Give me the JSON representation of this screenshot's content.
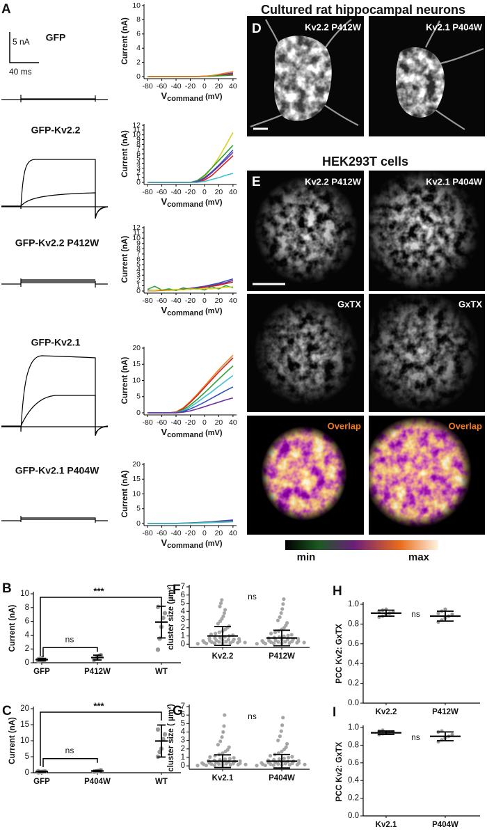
{
  "panel_labels": [
    "A",
    "B",
    "C",
    "D",
    "E",
    "F",
    "G",
    "H",
    "I"
  ],
  "traces": {
    "scale_current": "5 nA",
    "scale_time": "40 ms",
    "labels": [
      "GFP",
      "GFP-Kv2.2",
      "GFP-Kv2.2 P412W",
      "GFP-Kv2.1",
      "GFP-Kv2.1 P404W"
    ]
  },
  "imaging": {
    "neurons_title": "Cultured rat hippocampal neurons",
    "hek_title": "HEK293T cells",
    "columns": [
      "Kv2.2 P412W",
      "Kv2.1 P404W"
    ],
    "gxtx": "GxTX",
    "overlap": "Overlap",
    "colorbar": [
      "min",
      "max"
    ]
  },
  "chart_data": [
    {
      "type": "line",
      "y_label": "Current (nA)",
      "x_label": [
        "V",
        "command",
        "(mV)"
      ],
      "x": [
        -80,
        -70,
        -60,
        -50,
        -40,
        -30,
        -20,
        -10,
        0,
        10,
        20,
        30,
        40
      ],
      "xlim": [
        -85,
        45
      ],
      "xticks": [
        -80,
        -60,
        -40,
        -20,
        0,
        20,
        40
      ],
      "ylim": [
        0,
        10
      ],
      "yticks": [
        0,
        2,
        4,
        6,
        8,
        10
      ],
      "series": [
        {
          "color": "#7030a0",
          "values": [
            0,
            0,
            0,
            0,
            0,
            0,
            0,
            0,
            0.05,
            0.1,
            0.2,
            0.35,
            0.5
          ]
        },
        {
          "color": "#3050c0",
          "values": [
            0,
            0,
            0,
            0,
            0,
            0,
            0,
            0.02,
            0.05,
            0.1,
            0.2,
            0.3,
            0.4
          ]
        },
        {
          "color": "#d02020",
          "values": [
            0,
            0,
            0,
            0,
            0,
            0,
            0,
            0,
            0.03,
            0.08,
            0.15,
            0.25,
            0.35
          ]
        },
        {
          "color": "#30a030",
          "values": [
            0,
            0,
            0,
            0,
            0,
            0,
            0,
            0,
            0.02,
            0.05,
            0.1,
            0.15,
            0.2
          ]
        },
        {
          "color": "#e08020",
          "values": [
            0,
            0,
            0,
            0,
            0,
            0,
            0,
            0,
            0.05,
            0.15,
            0.3,
            0.5,
            0.7
          ]
        }
      ]
    },
    {
      "type": "line",
      "y_label": "Current (nA)",
      "x_label": [
        "V",
        "command",
        "(mV)"
      ],
      "x": [
        -80,
        -70,
        -60,
        -50,
        -40,
        -30,
        -20,
        -10,
        0,
        10,
        20,
        30,
        40
      ],
      "xlim": [
        -85,
        45
      ],
      "xticks": [
        -80,
        -60,
        -40,
        -20,
        0,
        20,
        40
      ],
      "ylim": [
        0,
        12
      ],
      "yticks": [
        0,
        1,
        2,
        3,
        4,
        5,
        6,
        7,
        8,
        9,
        10,
        11,
        12
      ],
      "series": [
        {
          "color": "#e0d020",
          "values": [
            0,
            0,
            0,
            0,
            0,
            0,
            0,
            0.3,
            1.2,
            3,
            5.2,
            7.8,
            10.5
          ]
        },
        {
          "color": "#30a030",
          "values": [
            0,
            0,
            0,
            0,
            0,
            0,
            0,
            0.4,
            1.5,
            3,
            4.6,
            6.2,
            7.8
          ]
        },
        {
          "color": "#3050c0",
          "values": [
            0,
            0,
            0,
            0,
            0,
            0,
            0,
            0.2,
            1,
            2.2,
            3.6,
            5.2,
            6.8
          ]
        },
        {
          "color": "#7030a0",
          "values": [
            0,
            0,
            0,
            0,
            0,
            0,
            0,
            0.1,
            0.8,
            2,
            3.4,
            4.8,
            6.3
          ]
        },
        {
          "color": "#d02020",
          "values": [
            0,
            0,
            0,
            0,
            0,
            0,
            0,
            0,
            0.5,
            1.4,
            2.8,
            4.2,
            5.6
          ]
        },
        {
          "color": "#40c0d0",
          "values": [
            0,
            0,
            0,
            0,
            0,
            0,
            0,
            0,
            0.2,
            0.6,
            1,
            1.5,
            1.9
          ]
        }
      ]
    },
    {
      "type": "line",
      "y_label": "Current (nA)",
      "x_label": [
        "V",
        "command",
        "(mV)"
      ],
      "x": [
        -80,
        -70,
        -60,
        -50,
        -40,
        -30,
        -20,
        -10,
        0,
        10,
        20,
        30,
        40
      ],
      "xlim": [
        -85,
        45
      ],
      "xticks": [
        -80,
        -60,
        -40,
        -20,
        0,
        20,
        40
      ],
      "ylim": [
        0,
        12
      ],
      "yticks": [
        0,
        1,
        2,
        3,
        4,
        5,
        6,
        7,
        8,
        9,
        10,
        11,
        12
      ],
      "series": [
        {
          "color": "#3050c0",
          "values": [
            0.1,
            0.1,
            0.15,
            0.2,
            0.25,
            0.35,
            0.5,
            0.7,
            0.9,
            1.2,
            1.5,
            1.9,
            2.3
          ]
        },
        {
          "color": "#7030a0",
          "values": [
            0.05,
            0.1,
            0.15,
            0.2,
            0.25,
            0.3,
            0.45,
            0.6,
            0.8,
            1.0,
            1.3,
            1.6,
            2.0
          ]
        },
        {
          "color": "#d02020",
          "values": [
            0,
            0.05,
            0.1,
            0.15,
            0.2,
            0.25,
            0.35,
            0.5,
            0.7,
            0.9,
            1.1,
            1.4,
            1.7
          ]
        },
        {
          "color": "#30a030",
          "values": [
            0.3,
            0.9,
            0.2,
            0.4,
            0.1,
            0.6,
            0.3,
            0.5,
            0.2,
            0.8,
            0.4,
            1.0,
            0.6
          ]
        },
        {
          "color": "#e0d020",
          "values": [
            0,
            0.1,
            0.2,
            0.1,
            0.3,
            0.2,
            0.4,
            0.3,
            0.5,
            0.4,
            0.6,
            0.7,
            0.8
          ]
        }
      ]
    },
    {
      "type": "line",
      "y_label": "Current (nA)",
      "x_label": [
        "V",
        "command",
        "(mV)"
      ],
      "x": [
        -80,
        -70,
        -60,
        -50,
        -40,
        -30,
        -20,
        -10,
        0,
        10,
        20,
        30,
        40
      ],
      "xlim": [
        -85,
        45
      ],
      "xticks": [
        -80,
        -60,
        -40,
        -20,
        0,
        20,
        40
      ],
      "ylim": [
        0,
        20
      ],
      "yticks": [
        0,
        5,
        10,
        15,
        20
      ],
      "series": [
        {
          "color": "#f08020",
          "values": [
            0,
            0,
            0,
            0,
            0.3,
            1.5,
            3.5,
            5.8,
            8.3,
            10.8,
            13.3,
            15.6,
            17.8
          ]
        },
        {
          "color": "#d02020",
          "values": [
            0,
            0,
            0,
            0,
            0.2,
            1.3,
            3.2,
            5.4,
            7.8,
            10.2,
            12.6,
            14.8,
            17
          ]
        },
        {
          "color": "#30a030",
          "values": [
            0,
            0,
            0,
            0,
            0.1,
            0.9,
            2.4,
            4.2,
            6.2,
            8.3,
            10.4,
            12.5,
            14.5
          ]
        },
        {
          "color": "#40c0d0",
          "values": [
            0,
            0,
            0,
            0,
            0.1,
            0.6,
            1.8,
            3.3,
            4.9,
            6.5,
            8.2,
            9.9,
            11.5
          ]
        },
        {
          "color": "#3050c0",
          "values": [
            0,
            0,
            0,
            0,
            0,
            0.4,
            1.2,
            2.2,
            3.3,
            4.5,
            5.7,
            6.9,
            8
          ]
        },
        {
          "color": "#7030a0",
          "values": [
            0,
            0,
            0,
            0,
            0,
            0.2,
            0.6,
            1.2,
            1.9,
            2.6,
            3.3,
            4,
            4.6
          ]
        }
      ]
    },
    {
      "type": "line",
      "y_label": "Current (nA)",
      "x_label": [
        "V",
        "command",
        "(mV)"
      ],
      "x": [
        -80,
        -70,
        -60,
        -50,
        -40,
        -30,
        -20,
        -10,
        0,
        10,
        20,
        30,
        40
      ],
      "xlim": [
        -85,
        45
      ],
      "xticks": [
        -80,
        -60,
        -40,
        -20,
        0,
        20,
        40
      ],
      "ylim": [
        0,
        20
      ],
      "yticks": [
        0,
        5,
        10,
        15,
        20
      ],
      "series": [
        {
          "color": "#3050c0",
          "values": [
            0,
            0,
            0,
            0,
            0.05,
            0.1,
            0.2,
            0.3,
            0.45,
            0.6,
            0.8,
            1,
            1.2
          ]
        },
        {
          "color": "#7030a0",
          "values": [
            0,
            0,
            0,
            0,
            0.05,
            0.1,
            0.15,
            0.25,
            0.35,
            0.5,
            0.65,
            0.8,
            1
          ]
        },
        {
          "color": "#30a030",
          "values": [
            0,
            0,
            0,
            0,
            0,
            0.05,
            0.1,
            0.2,
            0.3,
            0.4,
            0.5,
            0.6,
            0.7
          ]
        },
        {
          "color": "#40c0d0",
          "values": [
            0,
            0,
            0,
            0,
            0,
            0.05,
            0.1,
            0.15,
            0.2,
            0.3,
            0.4,
            0.5,
            0.6
          ]
        }
      ]
    },
    {
      "type": "dot",
      "y_label": "Current (nA)",
      "categories": [
        "GFP",
        "P412W",
        "WT"
      ],
      "ylim": [
        0,
        10
      ],
      "yticks": [
        0,
        2,
        4,
        6,
        8,
        10
      ],
      "color": "#999999",
      "points": [
        [
          0.25,
          0.3,
          0.35,
          0.4,
          0.45,
          0.5,
          0.6,
          0.7
        ],
        [
          0.4,
          0.6,
          0.8,
          1.0,
          1.1
        ],
        [
          1.9,
          3.5,
          5.2,
          6.5,
          7.2,
          8.1
        ]
      ],
      "means": [
        0.45,
        0.75,
        5.9
      ],
      "sds": [
        0.15,
        0.35,
        2.3
      ],
      "significance": [
        "***",
        "ns"
      ]
    },
    {
      "type": "dot",
      "y_label": "Current (nA)",
      "categories": [
        "GFP",
        "P404W",
        "WT"
      ],
      "ylim": [
        0,
        20
      ],
      "yticks": [
        0,
        5,
        10,
        15,
        20
      ],
      "color": "#999999",
      "points": [
        [
          0.1,
          0.2,
          0.3,
          0.35,
          0.4,
          0.5
        ],
        [
          0.3,
          0.4,
          0.5,
          0.6,
          0.8
        ],
        [
          5.0,
          6.5,
          7.5,
          10.5,
          12.0,
          13.5
        ]
      ],
      "means": [
        0.35,
        0.55,
        9.9
      ],
      "sds": [
        0.15,
        0.2,
        5.0
      ],
      "significance": [
        "***",
        "ns"
      ]
    },
    {
      "type": "swarm",
      "y_label": "cluster size (µm²)",
      "categories": [
        "Kv2.2",
        "P412W"
      ],
      "ylim": [
        -0.4,
        7
      ],
      "yticks": [
        0,
        1,
        2,
        3,
        4,
        5,
        6,
        7
      ],
      "color": "#a6a6a6",
      "points": [
        [
          0.05,
          0.08,
          0.1,
          0.12,
          0.15,
          0.18,
          0.2,
          0.22,
          0.25,
          0.28,
          0.3,
          0.32,
          0.35,
          0.4,
          0.42,
          0.45,
          0.5,
          0.55,
          0.6,
          0.65,
          0.7,
          0.75,
          0.8,
          0.9,
          1.0,
          1.1,
          1.2,
          1.3,
          1.45,
          1.6,
          1.8,
          2.0,
          2.2,
          2.5,
          2.8,
          3.1,
          3.4,
          3.8,
          4.2,
          4.6,
          5.0,
          5.4
        ],
        [
          0.05,
          0.07,
          0.1,
          0.12,
          0.14,
          0.17,
          0.2,
          0.22,
          0.25,
          0.27,
          0.3,
          0.33,
          0.36,
          0.4,
          0.43,
          0.47,
          0.5,
          0.55,
          0.6,
          0.66,
          0.72,
          0.8,
          0.88,
          0.95,
          1.05,
          1.15,
          1.3,
          1.45,
          1.6,
          1.8,
          2.0,
          2.3,
          2.6,
          2.9,
          3.3,
          3.8,
          4.3,
          4.9,
          5.5
        ]
      ],
      "means": [
        1.0,
        0.75
      ],
      "sds": [
        1.15,
        0.95
      ],
      "significance": "ns"
    },
    {
      "type": "swarm",
      "y_label": "cluster size ( µm²)",
      "categories": [
        "Kv2.1",
        "P404W"
      ],
      "ylim": [
        -0.4,
        7
      ],
      "yticks": [
        0,
        1,
        2,
        3,
        4,
        5,
        6,
        7
      ],
      "color": "#a6a6a6",
      "points": [
        [
          0.04,
          0.06,
          0.08,
          0.1,
          0.12,
          0.14,
          0.16,
          0.18,
          0.2,
          0.22,
          0.25,
          0.28,
          0.3,
          0.33,
          0.36,
          0.4,
          0.44,
          0.48,
          0.52,
          0.56,
          0.6,
          0.65,
          0.7,
          0.78,
          0.85,
          0.95,
          1.05,
          1.2,
          1.35,
          1.5,
          1.7,
          1.9,
          2.2,
          2.5,
          2.9,
          3.4,
          4.0,
          4.7,
          6.0
        ],
        [
          0.04,
          0.06,
          0.08,
          0.1,
          0.12,
          0.14,
          0.16,
          0.18,
          0.2,
          0.23,
          0.26,
          0.29,
          0.32,
          0.35,
          0.38,
          0.42,
          0.46,
          0.5,
          0.55,
          0.6,
          0.66,
          0.72,
          0.8,
          0.88,
          0.97,
          1.08,
          1.2,
          1.35,
          1.5,
          1.7,
          1.95,
          2.2,
          2.6,
          3.0,
          3.5,
          4.1,
          4.8,
          5.7
        ]
      ],
      "means": [
        0.55,
        0.55
      ],
      "sds": [
        0.75,
        0.8
      ],
      "significance": "ns"
    },
    {
      "type": "dot",
      "y_label": "PCC Kv2: GxTX",
      "categories": [
        "Kv2.2",
        "P412W"
      ],
      "ylim": [
        0,
        1
      ],
      "yticks": [
        {
          "value": 0,
          "label": "0.0"
        },
        0.2,
        0.4,
        0.6,
        0.8,
        {
          "value": 1,
          "label": "1.0"
        }
      ],
      "color": "#999999",
      "points": [
        [
          0.87,
          0.88,
          0.9,
          0.91,
          0.92,
          0.93,
          0.94,
          0.95
        ],
        [
          0.82,
          0.84,
          0.86,
          0.88,
          0.9,
          0.91,
          0.93,
          0.95
        ]
      ],
      "means": [
        0.91,
        0.88
      ],
      "sds": [
        0.03,
        0.05
      ],
      "significance": "ns"
    },
    {
      "type": "dot",
      "y_label": "PCC Kv2: GxTX",
      "categories": [
        "Kv2.1",
        "P404W"
      ],
      "ylim": [
        0,
        1
      ],
      "yticks": [
        {
          "value": 0,
          "label": "0.0"
        },
        0.2,
        0.4,
        0.6,
        0.8,
        {
          "value": 1,
          "label": "1.0"
        }
      ],
      "color": "#999999",
      "points": [
        [
          0.92,
          0.93,
          0.94,
          0.94,
          0.95,
          0.96,
          0.97
        ],
        [
          0.84,
          0.86,
          0.88,
          0.9,
          0.92,
          0.95,
          0.96
        ]
      ],
      "means": [
        0.94,
        0.9
      ],
      "sds": [
        0.02,
        0.05
      ],
      "significance": "ns"
    }
  ]
}
